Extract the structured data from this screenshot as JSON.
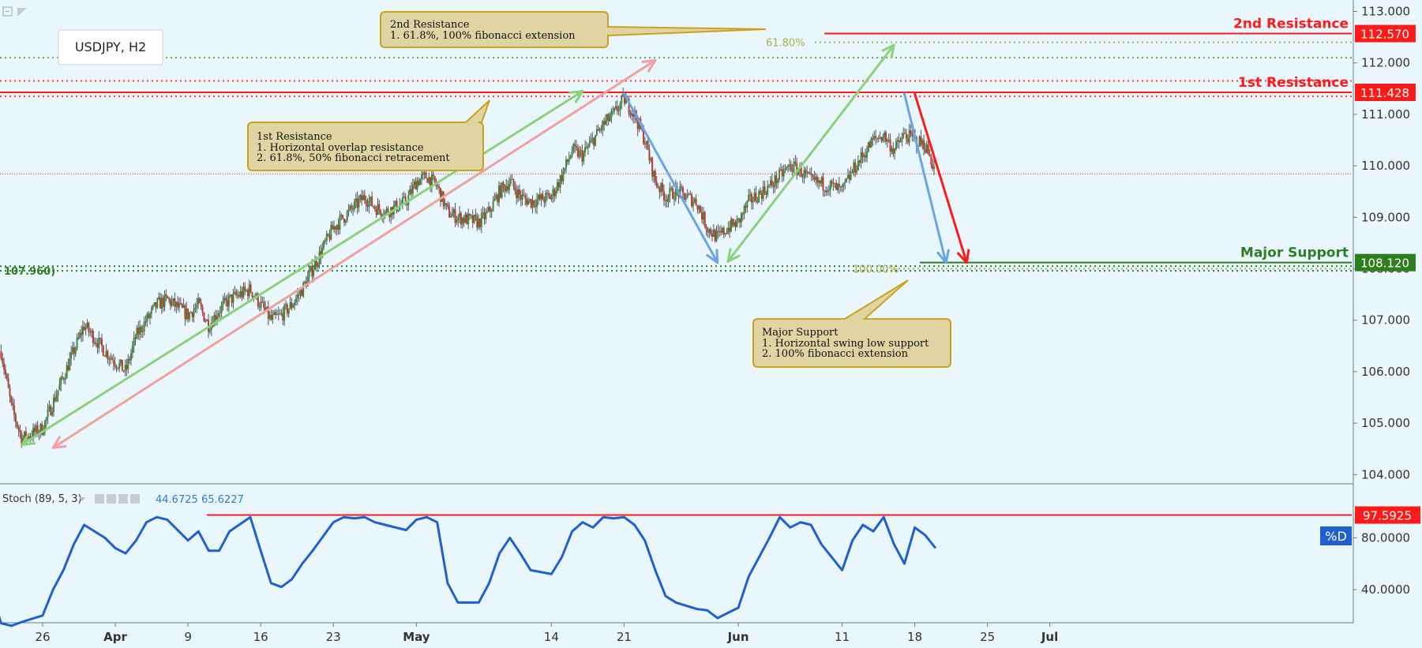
{
  "chart_data": {
    "type": "candlestick",
    "symbol_label": "USDJPY, H2",
    "main_panel": {
      "y_ticks": [
        "113.000",
        "112.000",
        "111.000",
        "110.000",
        "109.000",
        "108.000",
        "107.000",
        "106.000",
        "105.000",
        "104.000"
      ],
      "x_labels": [
        {
          "label": "26",
          "date": "2018-03-26"
        },
        {
          "label": "Apr",
          "date": "2018-04-02"
        },
        {
          "label": "9",
          "date": "2018-04-09"
        },
        {
          "label": "16",
          "date": "2018-04-16"
        },
        {
          "label": "23",
          "date": "2018-04-23"
        },
        {
          "label": "May",
          "date": "2018-05-01"
        },
        {
          "label": "14",
          "date": "2018-05-14"
        },
        {
          "label": "21",
          "date": "2018-05-21"
        },
        {
          "label": "Jun",
          "date": "2018-06-01"
        },
        {
          "label": "11",
          "date": "2018-06-11"
        },
        {
          "label": "18",
          "date": "2018-06-18"
        },
        {
          "label": "25",
          "date": "2018-06-25"
        },
        {
          "label": "Jul",
          "date": "2018-07-01"
        }
      ],
      "price_path": [
        [
          "2018-03-22",
          106.4
        ],
        [
          "2018-03-23",
          105.3
        ],
        [
          "2018-03-24",
          104.7
        ],
        [
          "2018-03-26",
          104.9
        ],
        [
          "2018-03-27",
          105.4
        ],
        [
          "2018-03-28",
          105.9
        ],
        [
          "2018-03-29",
          106.4
        ],
        [
          "2018-03-30",
          106.9
        ],
        [
          "2018-04-01",
          106.4
        ],
        [
          "2018-04-02",
          106.2
        ],
        [
          "2018-04-03",
          106.0
        ],
        [
          "2018-04-04",
          106.7
        ],
        [
          "2018-04-05",
          107.0
        ],
        [
          "2018-04-06",
          107.3
        ],
        [
          "2018-04-07",
          107.4
        ],
        [
          "2018-04-09",
          107.1
        ],
        [
          "2018-04-10",
          107.3
        ],
        [
          "2018-04-11",
          106.9
        ],
        [
          "2018-04-12",
          107.2
        ],
        [
          "2018-04-13",
          107.4
        ],
        [
          "2018-04-15",
          107.6
        ],
        [
          "2018-04-16",
          107.3
        ],
        [
          "2018-04-17",
          107.0
        ],
        [
          "2018-04-18",
          107.1
        ],
        [
          "2018-04-19",
          107.3
        ],
        [
          "2018-04-20",
          107.6
        ],
        [
          "2018-04-21",
          108.0
        ],
        [
          "2018-04-23",
          108.8
        ],
        [
          "2018-04-24",
          109.0
        ],
        [
          "2018-04-25",
          109.2
        ],
        [
          "2018-04-26",
          109.4
        ],
        [
          "2018-04-27",
          109.2
        ],
        [
          "2018-04-28",
          109.1
        ],
        [
          "2018-04-30",
          109.3
        ],
        [
          "2018-05-01",
          109.7
        ],
        [
          "2018-05-02",
          109.8
        ],
        [
          "2018-05-03",
          109.6
        ],
        [
          "2018-05-04",
          109.1
        ],
        [
          "2018-05-05",
          109.0
        ],
        [
          "2018-05-07",
          108.9
        ],
        [
          "2018-05-08",
          109.1
        ],
        [
          "2018-05-09",
          109.5
        ],
        [
          "2018-05-10",
          109.7
        ],
        [
          "2018-05-11",
          109.4
        ],
        [
          "2018-05-12",
          109.3
        ],
        [
          "2018-05-14",
          109.4
        ],
        [
          "2018-05-15",
          109.8
        ],
        [
          "2018-05-16",
          110.3
        ],
        [
          "2018-05-17",
          110.2
        ],
        [
          "2018-05-18",
          110.5
        ],
        [
          "2018-05-19",
          110.8
        ],
        [
          "2018-05-20",
          111.0
        ],
        [
          "2018-05-21",
          111.3
        ],
        [
          "2018-05-22",
          111.0
        ],
        [
          "2018-05-23",
          110.5
        ],
        [
          "2018-05-24",
          109.7
        ],
        [
          "2018-05-25",
          109.4
        ],
        [
          "2018-05-26",
          109.5
        ],
        [
          "2018-05-28",
          109.3
        ],
        [
          "2018-05-29",
          108.8
        ],
        [
          "2018-05-30",
          108.6
        ],
        [
          "2018-05-31",
          108.8
        ],
        [
          "2018-06-01",
          108.9
        ],
        [
          "2018-06-02",
          109.3
        ],
        [
          "2018-06-04",
          109.6
        ],
        [
          "2018-06-05",
          109.8
        ],
        [
          "2018-06-06",
          110.0
        ],
        [
          "2018-06-07",
          109.9
        ],
        [
          "2018-06-08",
          109.7
        ],
        [
          "2018-06-10",
          109.6
        ],
        [
          "2018-06-11",
          109.5
        ],
        [
          "2018-06-12",
          109.9
        ],
        [
          "2018-06-13",
          110.2
        ],
        [
          "2018-06-14",
          110.5
        ],
        [
          "2018-06-15",
          110.6
        ],
        [
          "2018-06-16",
          110.3
        ],
        [
          "2018-06-17",
          110.6
        ],
        [
          "2018-06-18",
          110.5
        ],
        [
          "2018-06-19",
          110.4
        ],
        [
          "2018-06-20",
          109.9
        ]
      ],
      "candle_count": 640,
      "levels": [
        {
          "name": "2nd Resistance",
          "value": 112.57,
          "label": "112.570",
          "color": "#ff1a1a"
        },
        {
          "name": "1st Resistance",
          "value": 111.428,
          "label": "111.428",
          "color": "#ff1a1a"
        },
        {
          "name": "Major Support",
          "value": 108.12,
          "label": "108.120",
          "color": "#2e7d1f"
        }
      ],
      "dotted_levels": [
        {
          "value": 112.4,
          "color": "#a8b04a",
          "label": "61.80%"
        },
        {
          "value": 112.1,
          "color": "#5ea84a"
        },
        {
          "value": 111.65,
          "color": "#ff3b3b"
        },
        {
          "value": 111.35,
          "color": "#ff3b3b"
        },
        {
          "value": 108.05,
          "color": "#2e7d1f"
        },
        {
          "value": 107.96,
          "color": "#2e7d1f",
          "label": "107.960)"
        },
        {
          "value": 108.0,
          "color": "#a8b04a",
          "label": "100.00%"
        }
      ],
      "current_price_line": 109.84,
      "arrows": [
        {
          "color": "#8bd07a",
          "from": [
            "2018-03-24",
            104.58
          ],
          "to": [
            "2018-05-17",
            111.45
          ]
        },
        {
          "color": "#f0a0a0",
          "from": [
            "2018-03-27",
            104.52
          ],
          "to": [
            "2018-05-24",
            112.05
          ]
        },
        {
          "color": "#8bd07a",
          "from": [
            "2018-05-31",
            108.14
          ],
          "to": [
            "2018-06-16",
            112.35
          ]
        },
        {
          "color": "#6aa3e8",
          "from": [
            "2018-05-21",
            111.4
          ],
          "to": [
            "2018-05-30",
            108.12
          ]
        },
        {
          "color": "#6aa3e8",
          "from": [
            "2018-06-17",
            111.4
          ],
          "to": [
            "2018-06-21",
            108.12
          ]
        },
        {
          "color": "#ff1a1a",
          "from": [
            "2018-06-18",
            111.4
          ],
          "to": [
            "2018-06-23",
            108.12
          ]
        }
      ],
      "annotations": [
        {
          "id": "note-2nd",
          "lines": [
            "2nd Resistance",
            "1. 61.8%, 100% fibonacci extension"
          ]
        },
        {
          "id": "note-1st",
          "lines": [
            "1st Resistance",
            "1. Horizontal overlap resistance",
            "2. 61.8%, 50% fibonacci retracement"
          ]
        },
        {
          "id": "note-support",
          "lines": [
            "Major Support",
            "1. Horizontal swing low support",
            "2. 100% fibonacci extension"
          ]
        }
      ]
    },
    "stoch_panel": {
      "title": "Stoch (89, 5, 3)",
      "values_label": [
        "44.6725",
        "65.6227"
      ],
      "y_ticks": [
        "80.0000",
        "40.0000"
      ],
      "level": {
        "value": 97.5925,
        "label": "97.5925",
        "color": "#ff1a1a"
      },
      "d_label": "%D",
      "d_path": [
        [
          "2018-03-21",
          40
        ],
        [
          "2018-03-22",
          14
        ],
        [
          "2018-03-23",
          12
        ],
        [
          "2018-03-24",
          15
        ],
        [
          "2018-03-26",
          20
        ],
        [
          "2018-03-27",
          40
        ],
        [
          "2018-03-28",
          55
        ],
        [
          "2018-03-29",
          75
        ],
        [
          "2018-03-30",
          90
        ],
        [
          "2018-04-01",
          80
        ],
        [
          "2018-04-02",
          72
        ],
        [
          "2018-04-03",
          68
        ],
        [
          "2018-04-04",
          78
        ],
        [
          "2018-04-05",
          92
        ],
        [
          "2018-04-06",
          96
        ],
        [
          "2018-04-07",
          94
        ],
        [
          "2018-04-09",
          78
        ],
        [
          "2018-04-10",
          85
        ],
        [
          "2018-04-11",
          70
        ],
        [
          "2018-04-12",
          70
        ],
        [
          "2018-04-13",
          85
        ],
        [
          "2018-04-15",
          96
        ],
        [
          "2018-04-16",
          70
        ],
        [
          "2018-04-17",
          45
        ],
        [
          "2018-04-18",
          42
        ],
        [
          "2018-04-19",
          48
        ],
        [
          "2018-04-20",
          60
        ],
        [
          "2018-04-21",
          70
        ],
        [
          "2018-04-23",
          92
        ],
        [
          "2018-04-24",
          96
        ],
        [
          "2018-04-25",
          95
        ],
        [
          "2018-04-26",
          96
        ],
        [
          "2018-04-27",
          92
        ],
        [
          "2018-04-28",
          90
        ],
        [
          "2018-04-30",
          86
        ],
        [
          "2018-05-01",
          94
        ],
        [
          "2018-05-02",
          96
        ],
        [
          "2018-05-03",
          92
        ],
        [
          "2018-05-04",
          45
        ],
        [
          "2018-05-05",
          30
        ],
        [
          "2018-05-07",
          30
        ],
        [
          "2018-05-08",
          45
        ],
        [
          "2018-05-09",
          68
        ],
        [
          "2018-05-10",
          80
        ],
        [
          "2018-05-11",
          68
        ],
        [
          "2018-05-12",
          55
        ],
        [
          "2018-05-14",
          52
        ],
        [
          "2018-05-15",
          65
        ],
        [
          "2018-05-16",
          85
        ],
        [
          "2018-05-17",
          92
        ],
        [
          "2018-05-18",
          88
        ],
        [
          "2018-05-19",
          96
        ],
        [
          "2018-05-20",
          95
        ],
        [
          "2018-05-21",
          96
        ],
        [
          "2018-05-22",
          90
        ],
        [
          "2018-05-23",
          78
        ],
        [
          "2018-05-24",
          55
        ],
        [
          "2018-05-25",
          35
        ],
        [
          "2018-05-26",
          30
        ],
        [
          "2018-05-28",
          25
        ],
        [
          "2018-05-29",
          24
        ],
        [
          "2018-05-30",
          18
        ],
        [
          "2018-05-31",
          22
        ],
        [
          "2018-06-01",
          26
        ],
        [
          "2018-06-02",
          50
        ],
        [
          "2018-06-04",
          80
        ],
        [
          "2018-06-05",
          96
        ],
        [
          "2018-06-06",
          88
        ],
        [
          "2018-06-07",
          92
        ],
        [
          "2018-06-08",
          90
        ],
        [
          "2018-06-09",
          75
        ],
        [
          "2018-06-11",
          55
        ],
        [
          "2018-06-12",
          78
        ],
        [
          "2018-06-13",
          90
        ],
        [
          "2018-06-14",
          85
        ],
        [
          "2018-06-15",
          96
        ],
        [
          "2018-06-16",
          75
        ],
        [
          "2018-06-17",
          60
        ],
        [
          "2018-06-18",
          88
        ],
        [
          "2018-06-19",
          82
        ],
        [
          "2018-06-20",
          72
        ]
      ]
    }
  }
}
